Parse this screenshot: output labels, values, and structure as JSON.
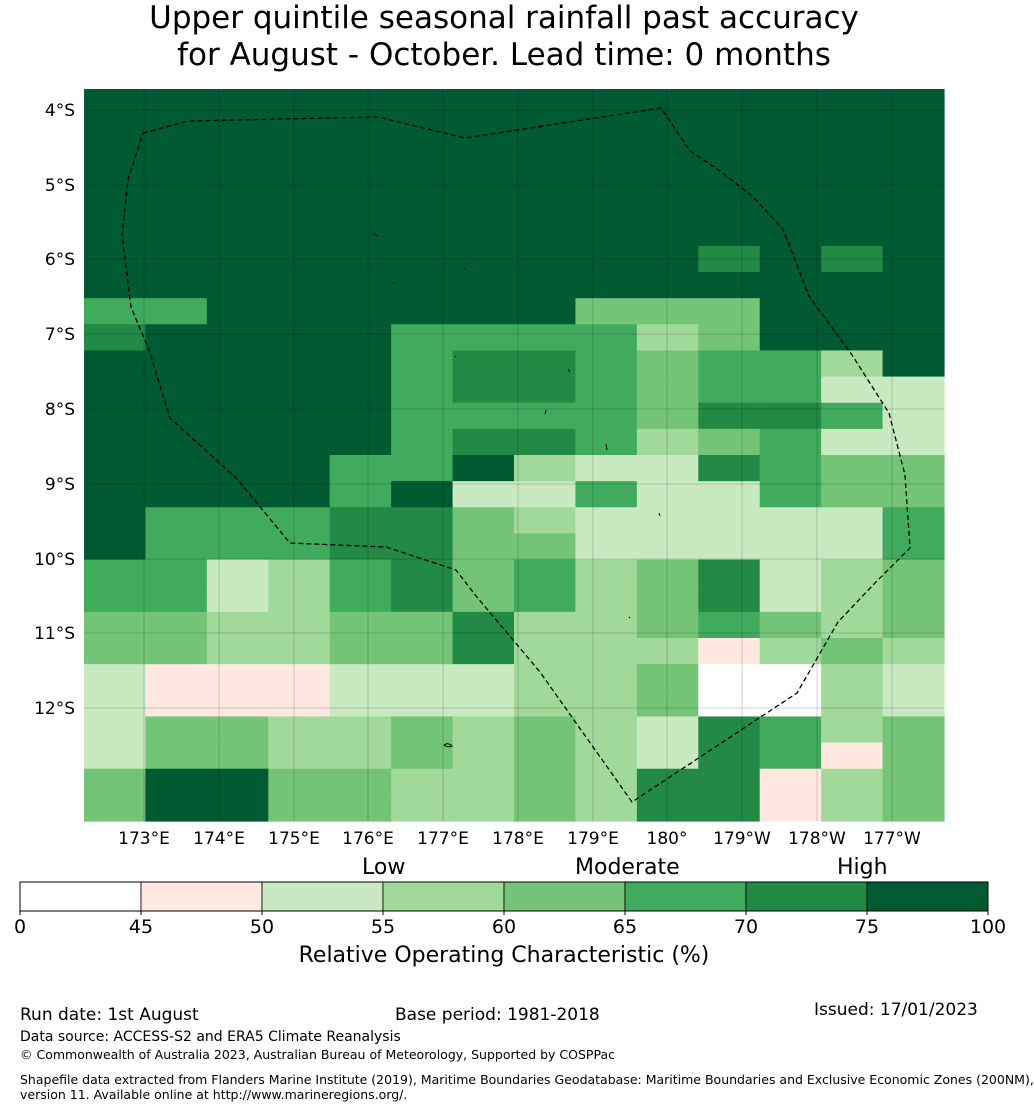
{
  "title": {
    "line1": "Upper quintile seasonal rainfall past accuracy",
    "line2": "for August - October. Lead time: 0 months"
  },
  "map": {
    "lat_labels": [
      "4°S",
      "5°S",
      "6°S",
      "7°S",
      "8°S",
      "9°S",
      "10°S",
      "11°S",
      "12°S"
    ],
    "lon_labels": [
      "173°E",
      "174°E",
      "175°E",
      "176°E",
      "177°E",
      "178°E",
      "179°E",
      "180°",
      "179°W",
      "178°W",
      "177°W"
    ],
    "region_outline": "Maritime boundary (dashed)",
    "colors": {
      "c0": "#ffffff",
      "c1": "#fee8e0",
      "c2": "#c9e9c1",
      "c3": "#a1d99b",
      "c4": "#73c476",
      "c5": "#41ab5d",
      "c6": "#228a45",
      "c7": "#005a32"
    },
    "grid_levels": [
      "77777777777777",
      "77777777777777",
      "77777777777777",
      "77777777777777",
      "77777777777777",
      "77777777777777",
      "77777777776767",
      "77777777777777",
      "55777777444777",
      "67777555534777",
      "77777566545537",
      "77777566545522",
      "77777555546652",
      "77777566534522",
      "77775573226544",
      "77775722522544",
      "75556643222225",
      "75556644222225",
      "55235645346234",
      "55235645346234",
      "44334463345434",
      "44334463331343",
      "21112223340032",
      "21112223340032",
      "24433434326534",
      "24433434326514",
      "47744334366134",
      "47744334366134"
    ]
  },
  "legend": {
    "category_labels": [
      "Low",
      "Moderate",
      "High"
    ],
    "ticks": [
      "0",
      "45",
      "50",
      "55",
      "60",
      "65",
      "70",
      "75",
      "100"
    ],
    "title": "Relative Operating Characteristic (%)"
  },
  "footer": {
    "run_date": "Run date: 1st August",
    "base_period": "Base period: 1981-2018",
    "issued": "Issued: 17/01/2023",
    "data_source": "Data source: ACCESS-S2 and ERA5 Climate Reanalysis",
    "copyright": "© Commonwealth of Australia 2023, Australian Bureau of Meteorology, Supported by COSPPac",
    "shapefile_line1": "Shapefile data extracted from Flanders Marine Institute (2019), Maritime Boundaries Geodatabase: Maritime Boundaries and Exclusive Economic Zones (200NM),",
    "shapefile_line2": "version 11. Available online at http://www.marineregions.org/."
  }
}
